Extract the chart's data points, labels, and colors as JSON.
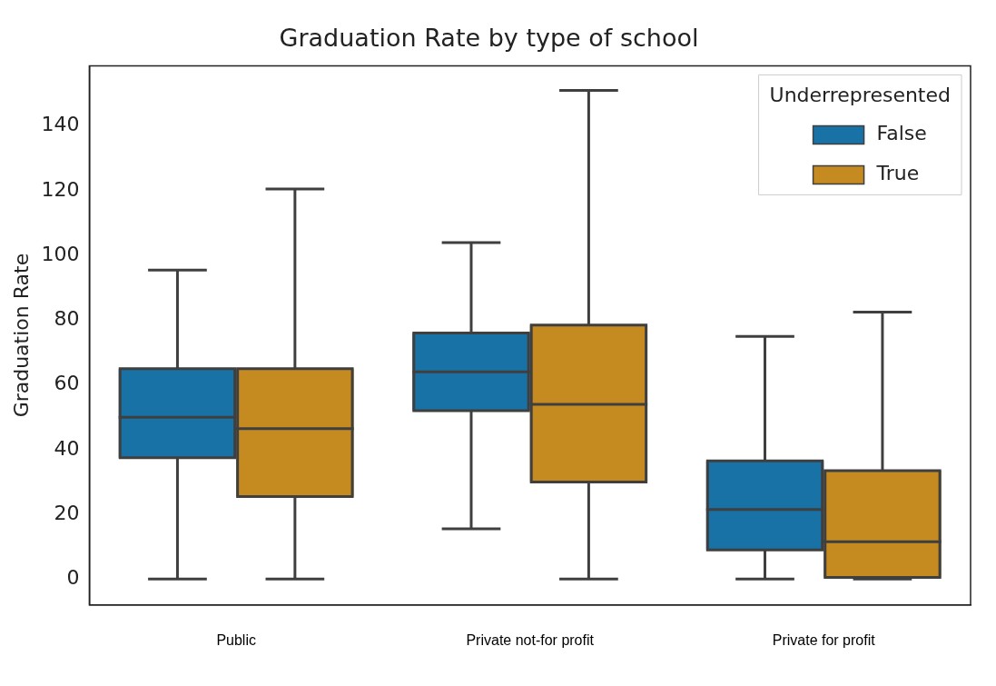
{
  "chart_data": {
    "type": "box",
    "title": "Graduation Rate by type of school",
    "ylabel": "Graduation Rate",
    "legend_title": "Underrepresented",
    "legend": "top right",
    "grid": false,
    "categories": [
      "Public",
      "Private not-for profit",
      "Private for profit"
    ],
    "ylim": [
      -8,
      158.6
    ],
    "yticks": [
      0,
      20,
      40,
      60,
      80,
      100,
      120,
      140
    ],
    "series": [
      {
        "name": "False",
        "color": "#1872a6",
        "boxes": [
          {
            "low": 0,
            "q1": 37.5,
            "median": 50,
            "q3": 65,
            "high": 95.5
          },
          {
            "low": 15.5,
            "q1": 52,
            "median": 64,
            "q3": 76,
            "high": 104
          },
          {
            "low": 0,
            "q1": 9,
            "median": 21.5,
            "q3": 36.5,
            "high": 75
          }
        ]
      },
      {
        "name": "True",
        "color": "#c58a20",
        "boxes": [
          {
            "low": 0,
            "q1": 25.5,
            "median": 46.5,
            "q3": 65,
            "high": 120.5
          },
          {
            "low": 0,
            "q1": 30,
            "median": 54,
            "q3": 78.5,
            "high": 151
          },
          {
            "low": 0,
            "q1": 0.5,
            "median": 11.5,
            "q3": 33.5,
            "high": 82.5
          }
        ]
      }
    ]
  }
}
